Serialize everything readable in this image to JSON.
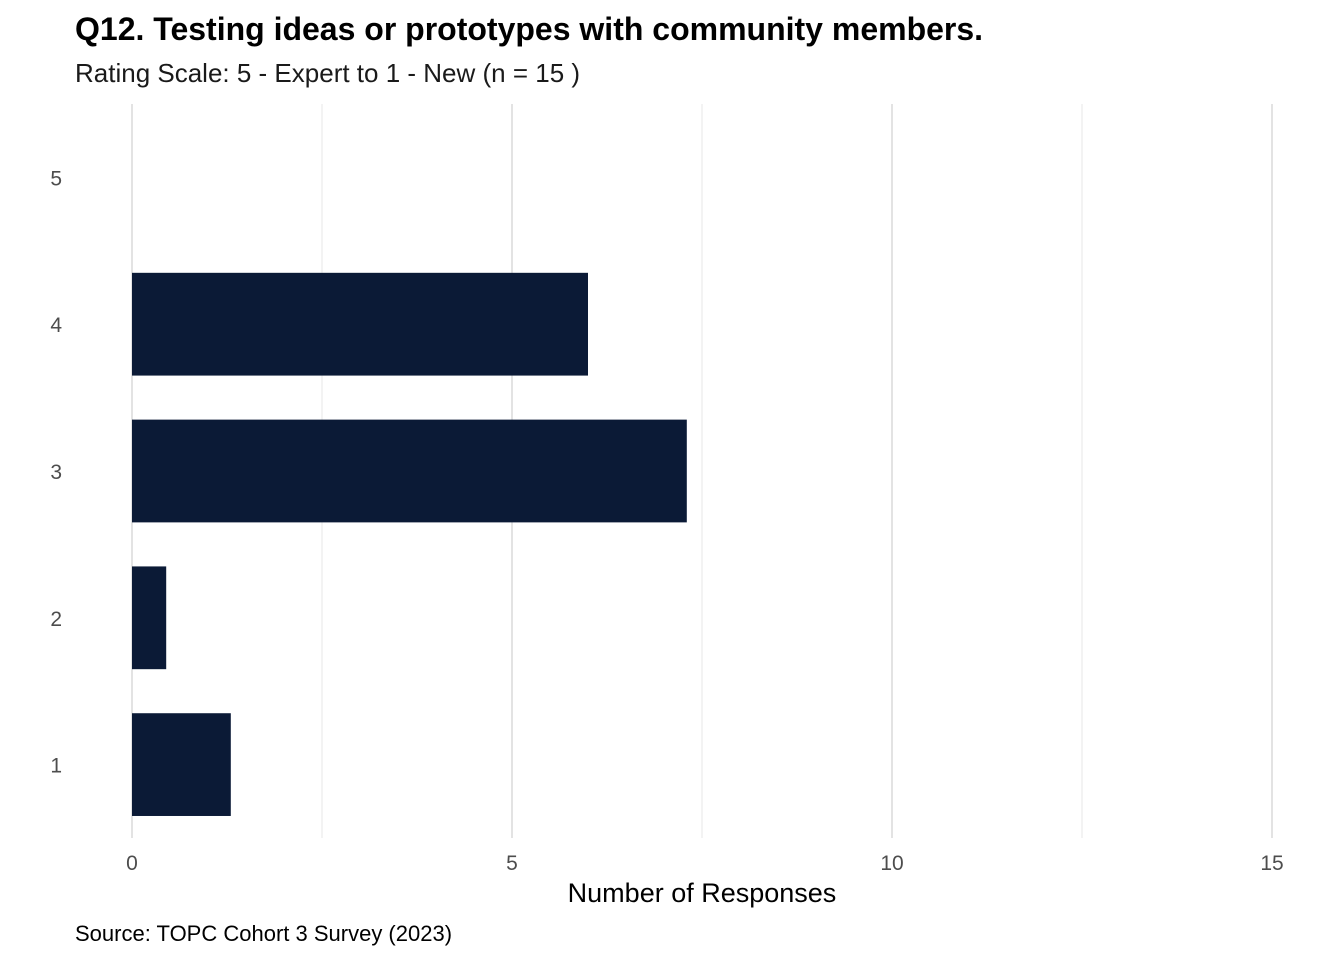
{
  "chart_data": {
    "type": "bar",
    "orientation": "horizontal",
    "title": "Q12. Testing ideas or prototypes with community members.",
    "subtitle": "Rating Scale: 5 - Expert to 1 - New (n = 15 )",
    "categories": [
      "1",
      "2",
      "3",
      "4",
      "5"
    ],
    "values": [
      1.3,
      0.45,
      7.3,
      6,
      0
    ],
    "xlabel": "Number of Responses",
    "ylabel": "",
    "xlim": [
      0,
      15
    ],
    "x_ticks": [
      "0",
      "5",
      "10",
      "15"
    ],
    "x_tick_values": [
      0,
      5,
      10,
      15
    ],
    "grid": true,
    "legend": "none",
    "bar_color": "#0b1a36",
    "caption": "Source: TOPC Cohort 3 Survey (2023)"
  }
}
